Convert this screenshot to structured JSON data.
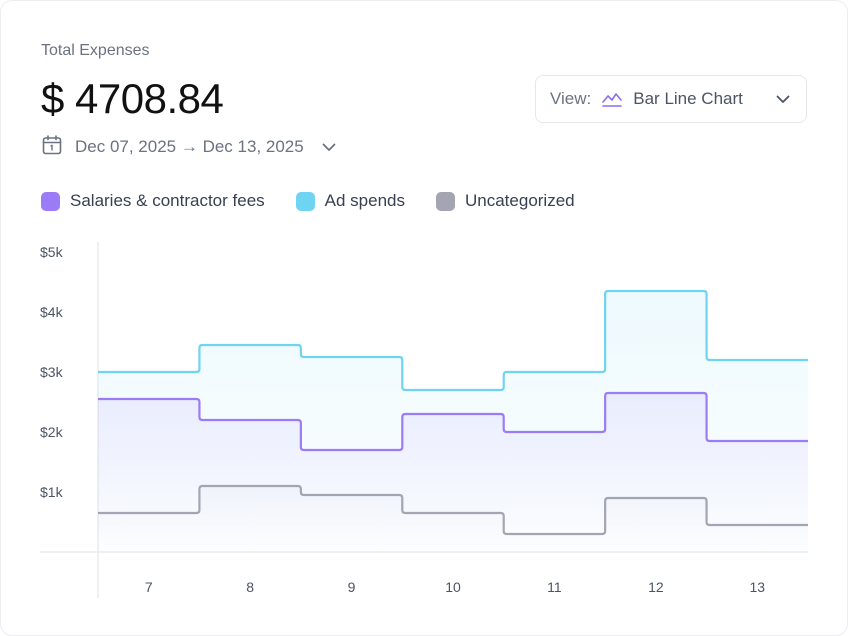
{
  "header": {
    "title": "Total Expenses",
    "amount": "$ 4708.84",
    "date_range": "Dec 07, 2025 → Dec 13, 2025"
  },
  "view_select": {
    "label": "View:",
    "value": "Bar Line Chart",
    "icon": "area-chart-icon"
  },
  "icons": {
    "calendar": "calendar-icon",
    "chevron": "chevron-down-icon"
  },
  "chart_data": {
    "type": "area",
    "step": true,
    "categories": [
      "7",
      "8",
      "9",
      "10",
      "11",
      "12",
      "13"
    ],
    "series": [
      {
        "name": "Salaries & contractor fees",
        "color": "#9b7cf6",
        "values": [
          2550,
          2200,
          1700,
          2300,
          2000,
          2650,
          1850
        ]
      },
      {
        "name": "Ad spends",
        "color": "#6fd3f2",
        "values": [
          3000,
          3450,
          3250,
          2700,
          3000,
          4350,
          3200
        ]
      },
      {
        "name": "Uncategorized",
        "color": "#a3a5b2",
        "values": [
          650,
          1100,
          950,
          650,
          300,
          900,
          450
        ]
      }
    ],
    "yticks": [
      "$1k",
      "$2k",
      "$3k",
      "$4k",
      "$5k"
    ],
    "ytick_values": [
      1000,
      2000,
      3000,
      4000,
      5000
    ],
    "ylim": [
      0,
      5000
    ],
    "grid": false,
    "legend_position": "top-left"
  }
}
